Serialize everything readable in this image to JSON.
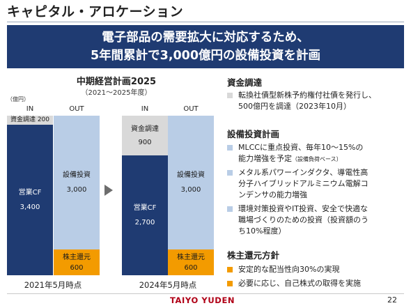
{
  "page_title": "キャピタル・アロケーション",
  "banner": {
    "line1": "電子部品の需要拡大に対応するため、",
    "line2": "5年間累計で3,000億円の設備投資を計画"
  },
  "chart": {
    "heading": "中期経営計画2025",
    "subheading": "（2021〜2025年度）",
    "unit": "（億円）",
    "in_label": "IN",
    "out_label": "OUT",
    "left_date": "2021年5月時点",
    "right_date": "2024年5月時点",
    "left": {
      "fund_raising_inline": "資金調達 200",
      "operating_cf_label": "営業CF",
      "operating_cf_value": "3,400",
      "capex_label": "設備投資",
      "capex_value": "3,000",
      "returns_label": "株主還元",
      "returns_value": "600"
    },
    "right": {
      "fund_raising_label": "資金調達",
      "fund_raising_value": "900",
      "operating_cf_label": "営業CF",
      "operating_cf_value": "2,700",
      "capex_label": "設備投資",
      "capex_value": "3,000",
      "returns_label": "株主還元",
      "returns_value": "600"
    },
    "colors": {
      "operating_cf": "#1f3b72",
      "capex": "#b9cde6",
      "fund_raising": "#d9d9d9",
      "returns": "#f39b00"
    }
  },
  "sections": {
    "funding": {
      "title": "資金調達",
      "b1_line1": "転換社債型新株予約権付社債を発行し、",
      "b1_line2": "500億円を調達（2023年10月）"
    },
    "capex": {
      "title": "設備投資計画",
      "b1_line1": "MLCCに重点投資、毎年10〜15%の",
      "b1_line2": "能力増強を予定",
      "b1_note": "（設備負荷ベース）",
      "b2_line1": "メタル系パワーインダクタ、導電性高",
      "b2_line2": "分子ハイブリッドアルミニウム電解コ",
      "b2_line3": "ンデンサの能力増強",
      "b3_line1": "環境対策投資やIT投資、安全で快適な",
      "b3_line2": "職場づくりのための投資（投資額のう",
      "b3_line3": "ち10%程度）"
    },
    "returns": {
      "title": "株主還元方針",
      "b1": "安定的な配当性向30%の実現",
      "b2": "必要に応じ、自己株式の取得を実施"
    }
  },
  "footer": {
    "logo": "TAIYO YUDEN",
    "page_number": "22"
  }
}
